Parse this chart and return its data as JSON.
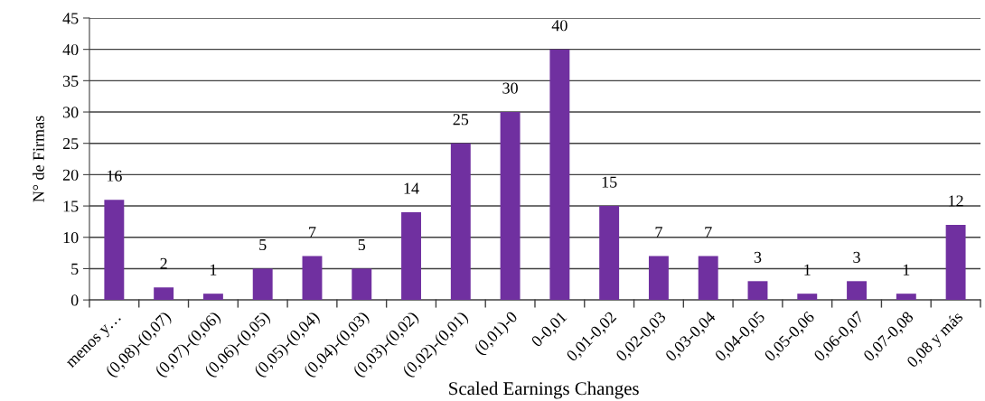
{
  "chart_data": {
    "type": "bar",
    "xlabel": "Scaled Earnings Changes",
    "ylabel": "N° de Firmas",
    "categories": [
      "menos y…",
      "(0,08)-(0,07)",
      "(0,07)-(0,06)",
      "(0,06)-(0,05)",
      "(0,05)-(0,04)",
      "(0,04)-(0,03)",
      "(0,03)-(0,02)",
      "(0,02)-(0,01)",
      "(0,01)-0",
      "0-0,01",
      "0,01-0,02",
      "0,02-0,03",
      "0,03-0,04",
      "0,04-0,05",
      "0,05-0,06",
      "0,06-0,07",
      "0,07-0,08",
      "0,08 y más"
    ],
    "values": [
      16,
      2,
      1,
      5,
      7,
      5,
      14,
      25,
      30,
      40,
      15,
      7,
      7,
      3,
      1,
      3,
      1,
      12
    ],
    "color": "#7030a0",
    "ylim": [
      0,
      45
    ],
    "yticks": [
      0,
      5,
      10,
      15,
      20,
      25,
      30,
      35,
      40,
      45
    ],
    "grid": "y",
    "data_labels": true,
    "legend": false
  }
}
